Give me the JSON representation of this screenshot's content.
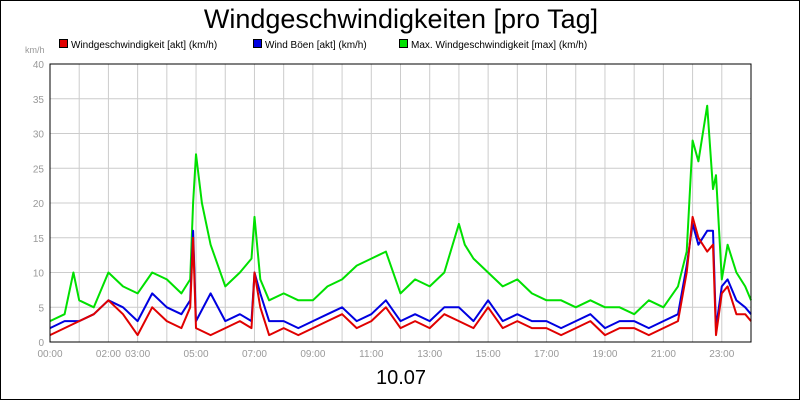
{
  "chart_data": {
    "type": "line",
    "title": "Windgeschwindigkeiten [pro Tag]",
    "ylabel": "km/h",
    "xlabel": "10.07",
    "ylim": [
      0,
      40
    ],
    "xlim": [
      0,
      24
    ],
    "yticks": [
      0,
      5,
      10,
      15,
      20,
      25,
      30,
      35,
      40
    ],
    "xticks": [
      {
        "x": 0,
        "label": "00:00"
      },
      {
        "x": 2,
        "label": "02:00"
      },
      {
        "x": 3,
        "label": "03:00"
      },
      {
        "x": 5,
        "label": "05:00"
      },
      {
        "x": 7,
        "label": "07:00"
      },
      {
        "x": 9,
        "label": "09:00"
      },
      {
        "x": 11,
        "label": "11:00"
      },
      {
        "x": 13,
        "label": "13:00"
      },
      {
        "x": 15,
        "label": "15:00"
      },
      {
        "x": 17,
        "label": "17:00"
      },
      {
        "x": 19,
        "label": "19:00"
      },
      {
        "x": 21,
        "label": "21:00"
      },
      {
        "x": 23,
        "label": "23:00"
      }
    ],
    "grid": true,
    "legend_position": "top",
    "series": [
      {
        "name": "Windgeschwindigkeit [akt] (km/h)",
        "color": "#e00000",
        "x": [
          0,
          0.5,
          1,
          1.5,
          2,
          2.5,
          3,
          3.5,
          4,
          4.5,
          4.8,
          4.9,
          5,
          5.5,
          6,
          6.5,
          6.9,
          7,
          7.2,
          7.5,
          8,
          8.5,
          9,
          9.5,
          10,
          10.5,
          11,
          11.5,
          12,
          12.5,
          13,
          13.5,
          14,
          14.5,
          15,
          15.5,
          16,
          16.5,
          17,
          17.5,
          18,
          18.5,
          19,
          19.5,
          20,
          20.5,
          21,
          21.5,
          21.8,
          22,
          22.2,
          22.5,
          22.7,
          22.8,
          23,
          23.2,
          23.5,
          23.8,
          24
        ],
        "y": [
          1,
          2,
          3,
          4,
          6,
          4,
          1,
          5,
          3,
          2,
          5,
          15,
          2,
          1,
          2,
          3,
          2,
          10,
          5,
          1,
          2,
          1,
          2,
          3,
          4,
          2,
          3,
          5,
          2,
          3,
          2,
          4,
          3,
          2,
          5,
          2,
          3,
          2,
          2,
          1,
          2,
          3,
          1,
          2,
          2,
          1,
          2,
          3,
          10,
          18,
          15,
          13,
          14,
          1,
          7,
          8,
          4,
          4,
          3
        ]
      },
      {
        "name": "Wind Böen [akt] (km/h)",
        "color": "#0000e0",
        "x": [
          0,
          0.5,
          1,
          1.5,
          2,
          2.5,
          3,
          3.5,
          4,
          4.5,
          4.8,
          4.9,
          5,
          5.5,
          6,
          6.5,
          6.9,
          7,
          7.2,
          7.5,
          8,
          8.5,
          9,
          9.5,
          10,
          10.5,
          11,
          11.5,
          12,
          12.5,
          13,
          13.5,
          14,
          14.5,
          15,
          15.5,
          16,
          16.5,
          17,
          17.5,
          18,
          18.5,
          19,
          19.5,
          20,
          20.5,
          21,
          21.5,
          21.8,
          22,
          22.2,
          22.5,
          22.7,
          22.8,
          23,
          23.2,
          23.5,
          23.8,
          24
        ],
        "y": [
          2,
          3,
          3,
          4,
          6,
          5,
          3,
          7,
          5,
          4,
          6,
          16,
          3,
          7,
          3,
          4,
          3,
          10,
          7,
          3,
          3,
          2,
          3,
          4,
          5,
          3,
          4,
          6,
          3,
          4,
          3,
          5,
          5,
          3,
          6,
          3,
          4,
          3,
          3,
          2,
          3,
          4,
          2,
          3,
          3,
          2,
          3,
          4,
          11,
          17,
          14,
          16,
          16,
          2,
          8,
          9,
          6,
          5,
          4
        ]
      },
      {
        "name": "Max. Windgeschwindigkeit [max] (km/h)",
        "color": "#00e000",
        "x": [
          0,
          0.5,
          0.8,
          1,
          1.5,
          2,
          2.5,
          3,
          3.5,
          4,
          4.5,
          4.8,
          4.9,
          5,
          5.2,
          5.5,
          6,
          6.5,
          6.9,
          7,
          7.2,
          7.5,
          8,
          8.5,
          9,
          9.5,
          10,
          10.5,
          11,
          11.5,
          12,
          12.5,
          13,
          13.5,
          14,
          14.2,
          14.5,
          15,
          15.5,
          16,
          16.5,
          17,
          17.5,
          18,
          18.5,
          19,
          19.5,
          20,
          20.5,
          21,
          21.5,
          21.8,
          22,
          22.2,
          22.5,
          22.7,
          22.8,
          23,
          23.2,
          23.5,
          23.8,
          24
        ],
        "y": [
          3,
          4,
          10,
          6,
          5,
          10,
          8,
          7,
          10,
          9,
          7,
          9,
          20,
          27,
          20,
          14,
          8,
          10,
          12,
          18,
          9,
          6,
          7,
          6,
          6,
          8,
          9,
          11,
          12,
          13,
          7,
          9,
          8,
          10,
          17,
          14,
          12,
          10,
          8,
          9,
          7,
          6,
          6,
          5,
          6,
          5,
          5,
          4,
          6,
          5,
          8,
          13,
          29,
          26,
          34,
          22,
          24,
          9,
          14,
          10,
          8,
          6
        ]
      }
    ]
  }
}
